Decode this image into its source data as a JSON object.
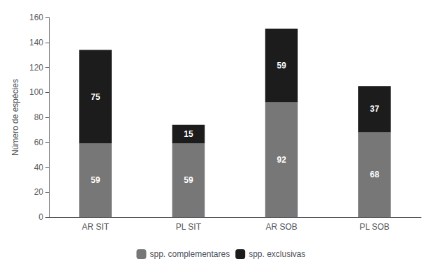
{
  "chart_data": {
    "type": "bar",
    "stacked": true,
    "data_labels": true,
    "grid": false,
    "legend": "bottom",
    "categories": [
      "AR SIT",
      "PL SIT",
      "AR SOB",
      "PL SOB"
    ],
    "series": [
      {
        "name": "spp. complementares",
        "color": "#777777",
        "values": [
          59,
          59,
          92,
          68
        ]
      },
      {
        "name": "spp. exclusivas",
        "color": "#1c1c1c",
        "values": [
          75,
          15,
          59,
          37
        ]
      }
    ],
    "ylabel": "Número de espécies",
    "ylim": [
      0,
      160
    ],
    "yticks": [
      0,
      20,
      40,
      60,
      80,
      100,
      120,
      140,
      160
    ]
  }
}
